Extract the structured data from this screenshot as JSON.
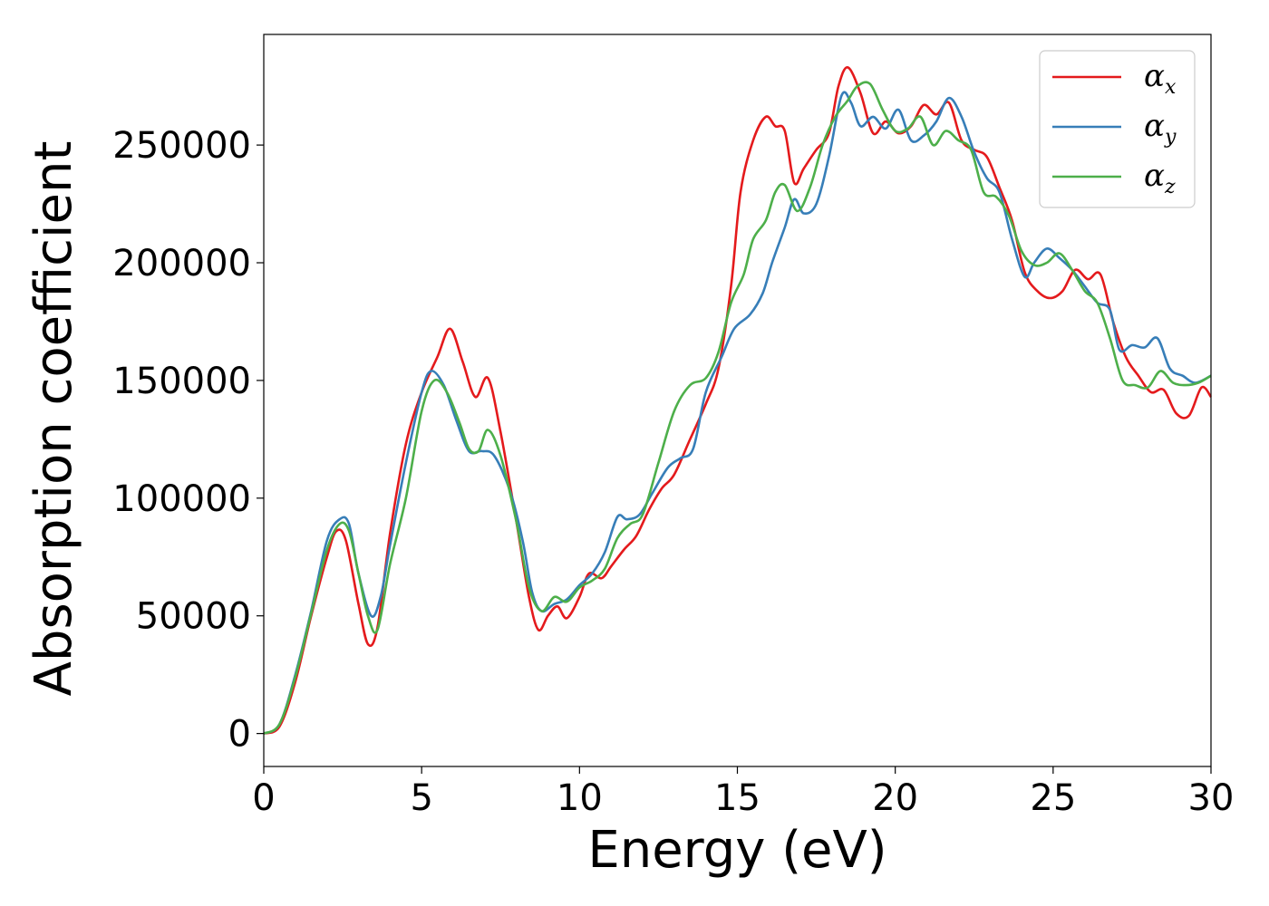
{
  "chart_data": {
    "type": "line",
    "title": "",
    "xlabel": "Energy (eV)",
    "ylabel": "Absorption coefficient",
    "xlim": [
      0,
      30
    ],
    "ylim": [
      -14000,
      297000
    ],
    "xticks": [
      0,
      5,
      10,
      15,
      20,
      25,
      30
    ],
    "yticks": [
      0,
      50000,
      100000,
      150000,
      200000,
      250000
    ],
    "grid": false,
    "legend_position": "top-right",
    "legend": [
      {
        "symbol": "α",
        "sub": "x"
      },
      {
        "symbol": "α",
        "sub": "y"
      },
      {
        "symbol": "α",
        "sub": "z"
      }
    ],
    "series": [
      {
        "name": "αx",
        "color": "#e41a1c",
        "points": [
          [
            0,
            0
          ],
          [
            0.5,
            3000
          ],
          [
            1,
            22000
          ],
          [
            1.5,
            50000
          ],
          [
            2,
            75000
          ],
          [
            2.3,
            86000
          ],
          [
            2.6,
            82000
          ],
          [
            3,
            55000
          ],
          [
            3.3,
            38000
          ],
          [
            3.6,
            45000
          ],
          [
            4,
            85000
          ],
          [
            4.5,
            123000
          ],
          [
            5,
            145000
          ],
          [
            5.5,
            160000
          ],
          [
            5.9,
            172000
          ],
          [
            6.3,
            158000
          ],
          [
            6.7,
            143000
          ],
          [
            7.1,
            151000
          ],
          [
            7.5,
            128000
          ],
          [
            8,
            90000
          ],
          [
            8.4,
            58000
          ],
          [
            8.7,
            44000
          ],
          [
            9,
            50000
          ],
          [
            9.3,
            54000
          ],
          [
            9.6,
            49000
          ],
          [
            10,
            58000
          ],
          [
            10.3,
            68000
          ],
          [
            10.7,
            66000
          ],
          [
            11,
            71000
          ],
          [
            11.4,
            78000
          ],
          [
            11.8,
            84000
          ],
          [
            12.2,
            95000
          ],
          [
            12.6,
            104000
          ],
          [
            13,
            110000
          ],
          [
            13.5,
            125000
          ],
          [
            14,
            140000
          ],
          [
            14.4,
            155000
          ],
          [
            14.8,
            190000
          ],
          [
            15.1,
            230000
          ],
          [
            15.5,
            252000
          ],
          [
            15.9,
            262000
          ],
          [
            16.2,
            258000
          ],
          [
            16.5,
            256000
          ],
          [
            16.8,
            234000
          ],
          [
            17.1,
            240000
          ],
          [
            17.5,
            248000
          ],
          [
            17.9,
            255000
          ],
          [
            18.2,
            275000
          ],
          [
            18.5,
            283000
          ],
          [
            18.9,
            272000
          ],
          [
            19.3,
            255000
          ],
          [
            19.7,
            260000
          ],
          [
            20.1,
            255000
          ],
          [
            20.5,
            258000
          ],
          [
            20.9,
            267000
          ],
          [
            21.3,
            263000
          ],
          [
            21.7,
            268000
          ],
          [
            22.1,
            252000
          ],
          [
            22.5,
            248000
          ],
          [
            22.9,
            245000
          ],
          [
            23.3,
            232000
          ],
          [
            23.7,
            218000
          ],
          [
            24.1,
            196000
          ],
          [
            24.5,
            188000
          ],
          [
            24.9,
            185000
          ],
          [
            25.3,
            188000
          ],
          [
            25.7,
            197000
          ],
          [
            26.1,
            193000
          ],
          [
            26.5,
            195000
          ],
          [
            26.9,
            175000
          ],
          [
            27.3,
            160000
          ],
          [
            27.7,
            152000
          ],
          [
            28.1,
            145000
          ],
          [
            28.5,
            146000
          ],
          [
            28.9,
            136000
          ],
          [
            29.3,
            135000
          ],
          [
            29.7,
            147000
          ],
          [
            30,
            143000
          ]
        ]
      },
      {
        "name": "αy",
        "color": "#377eb8",
        "points": [
          [
            0,
            0
          ],
          [
            0.5,
            4000
          ],
          [
            1,
            25000
          ],
          [
            1.5,
            52000
          ],
          [
            2,
            82000
          ],
          [
            2.4,
            91000
          ],
          [
            2.7,
            89000
          ],
          [
            3,
            68000
          ],
          [
            3.4,
            50000
          ],
          [
            3.7,
            58000
          ],
          [
            4,
            80000
          ],
          [
            4.5,
            115000
          ],
          [
            5,
            145000
          ],
          [
            5.3,
            154000
          ],
          [
            5.7,
            148000
          ],
          [
            6.1,
            133000
          ],
          [
            6.5,
            120000
          ],
          [
            6.9,
            120000
          ],
          [
            7.3,
            118000
          ],
          [
            7.8,
            103000
          ],
          [
            8.2,
            82000
          ],
          [
            8.5,
            60000
          ],
          [
            8.8,
            52000
          ],
          [
            9.2,
            55000
          ],
          [
            9.6,
            57000
          ],
          [
            10,
            63000
          ],
          [
            10.4,
            68000
          ],
          [
            10.8,
            77000
          ],
          [
            11.2,
            92000
          ],
          [
            11.5,
            91000
          ],
          [
            11.9,
            93000
          ],
          [
            12.3,
            102000
          ],
          [
            12.8,
            113000
          ],
          [
            13.2,
            117000
          ],
          [
            13.6,
            121000
          ],
          [
            14,
            145000
          ],
          [
            14.5,
            160000
          ],
          [
            14.9,
            172000
          ],
          [
            15.4,
            178000
          ],
          [
            15.8,
            187000
          ],
          [
            16.1,
            200000
          ],
          [
            16.5,
            215000
          ],
          [
            16.8,
            227000
          ],
          [
            17.1,
            221000
          ],
          [
            17.5,
            225000
          ],
          [
            17.9,
            245000
          ],
          [
            18.3,
            271000
          ],
          [
            18.6,
            268000
          ],
          [
            18.9,
            258000
          ],
          [
            19.3,
            262000
          ],
          [
            19.7,
            257000
          ],
          [
            20.1,
            265000
          ],
          [
            20.5,
            252000
          ],
          [
            20.9,
            254000
          ],
          [
            21.3,
            260000
          ],
          [
            21.7,
            270000
          ],
          [
            22.1,
            262000
          ],
          [
            22.5,
            247000
          ],
          [
            22.9,
            236000
          ],
          [
            23.3,
            230000
          ],
          [
            23.7,
            210000
          ],
          [
            24.1,
            194000
          ],
          [
            24.4,
            200000
          ],
          [
            24.8,
            206000
          ],
          [
            25.2,
            202000
          ],
          [
            25.6,
            197000
          ],
          [
            26,
            190000
          ],
          [
            26.4,
            183000
          ],
          [
            26.8,
            180000
          ],
          [
            27.1,
            163000
          ],
          [
            27.5,
            165000
          ],
          [
            27.9,
            164000
          ],
          [
            28.3,
            168000
          ],
          [
            28.7,
            155000
          ],
          [
            29.1,
            152000
          ],
          [
            29.5,
            149000
          ],
          [
            30,
            152000
          ]
        ]
      },
      {
        "name": "αz",
        "color": "#4daf4a",
        "points": [
          [
            0,
            0
          ],
          [
            0.5,
            4000
          ],
          [
            1,
            24000
          ],
          [
            1.5,
            51000
          ],
          [
            2,
            78000
          ],
          [
            2.4,
            89000
          ],
          [
            2.7,
            86000
          ],
          [
            3,
            68000
          ],
          [
            3.3,
            50000
          ],
          [
            3.6,
            44000
          ],
          [
            4,
            72000
          ],
          [
            4.5,
            100000
          ],
          [
            5,
            137000
          ],
          [
            5.4,
            150000
          ],
          [
            5.8,
            145000
          ],
          [
            6.2,
            132000
          ],
          [
            6.5,
            121000
          ],
          [
            6.8,
            120000
          ],
          [
            7.1,
            129000
          ],
          [
            7.5,
            118000
          ],
          [
            8,
            90000
          ],
          [
            8.4,
            62000
          ],
          [
            8.8,
            52000
          ],
          [
            9.2,
            58000
          ],
          [
            9.6,
            56000
          ],
          [
            10,
            62000
          ],
          [
            10.4,
            65000
          ],
          [
            10.8,
            70000
          ],
          [
            11.2,
            83000
          ],
          [
            11.6,
            89000
          ],
          [
            12,
            93000
          ],
          [
            12.5,
            115000
          ],
          [
            13,
            137000
          ],
          [
            13.5,
            148000
          ],
          [
            14,
            151000
          ],
          [
            14.4,
            162000
          ],
          [
            14.8,
            183000
          ],
          [
            15.2,
            195000
          ],
          [
            15.5,
            210000
          ],
          [
            15.9,
            218000
          ],
          [
            16.2,
            230000
          ],
          [
            16.5,
            233000
          ],
          [
            16.9,
            222000
          ],
          [
            17.3,
            232000
          ],
          [
            17.7,
            250000
          ],
          [
            18.1,
            262000
          ],
          [
            18.5,
            269000
          ],
          [
            18.8,
            275000
          ],
          [
            19.2,
            276000
          ],
          [
            19.6,
            265000
          ],
          [
            20,
            256000
          ],
          [
            20.4,
            257000
          ],
          [
            20.8,
            262000
          ],
          [
            21.2,
            250000
          ],
          [
            21.6,
            256000
          ],
          [
            22,
            252000
          ],
          [
            22.4,
            248000
          ],
          [
            22.8,
            230000
          ],
          [
            23.2,
            228000
          ],
          [
            23.6,
            220000
          ],
          [
            24,
            205000
          ],
          [
            24.4,
            199000
          ],
          [
            24.8,
            200000
          ],
          [
            25.2,
            204000
          ],
          [
            25.6,
            197000
          ],
          [
            26,
            188000
          ],
          [
            26.4,
            183000
          ],
          [
            26.8,
            168000
          ],
          [
            27.2,
            150000
          ],
          [
            27.6,
            148000
          ],
          [
            28,
            147000
          ],
          [
            28.4,
            154000
          ],
          [
            28.8,
            149000
          ],
          [
            29.2,
            148000
          ],
          [
            29.6,
            149000
          ],
          [
            30,
            152000
          ]
        ]
      }
    ]
  }
}
